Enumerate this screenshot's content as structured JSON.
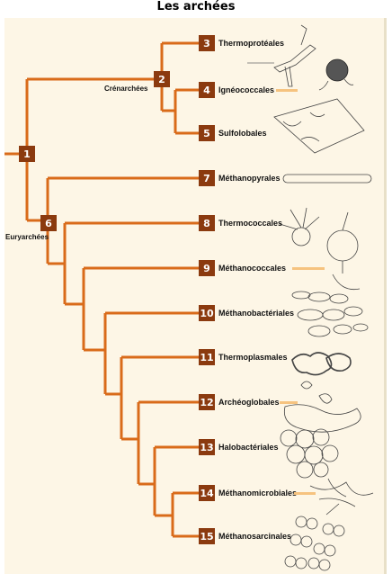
{
  "title": "Les archées",
  "colors": {
    "branch": "#d96b1a",
    "node": "#8b3a0f",
    "background": "#fdf6e6",
    "accent_bar": "#f6c37f"
  },
  "internal_nodes": [
    {
      "num": "1"
    },
    {
      "num": "2",
      "label": "Crénarchées"
    },
    {
      "num": "6",
      "label": "Euryarchées"
    }
  ],
  "taxa": [
    {
      "num": "3",
      "name": "Thermoprotéales"
    },
    {
      "num": "4",
      "name": "Ignéococcales"
    },
    {
      "num": "5",
      "name": "Sulfolobales"
    },
    {
      "num": "7",
      "name": "Méthanopyrales"
    },
    {
      "num": "8",
      "name": "Thermococcales"
    },
    {
      "num": "9",
      "name": "Méthanococcales"
    },
    {
      "num": "10",
      "name": "Méthanobactériales"
    },
    {
      "num": "11",
      "name": "Thermoplasmales"
    },
    {
      "num": "12",
      "name": "Archéoglobales"
    },
    {
      "num": "13",
      "name": "Halobactériales"
    },
    {
      "num": "14",
      "name": "Méthanomicrobiales"
    },
    {
      "num": "15",
      "name": "Méthanosarcinales"
    }
  ],
  "illustrations": [
    "thermoproteales-cells",
    "igneococcales-cell",
    "sulfolobales-cells",
    "methanopyrales-rod",
    "thermococcales-cells",
    "methanococcales-cell",
    "methanobacteriales-cells",
    "thermoplasmales-cells",
    "archaeoglobales-cells",
    "halobacteriales-cells",
    "methanomicrobiales-filaments",
    "methanosarcinales-clusters"
  ]
}
